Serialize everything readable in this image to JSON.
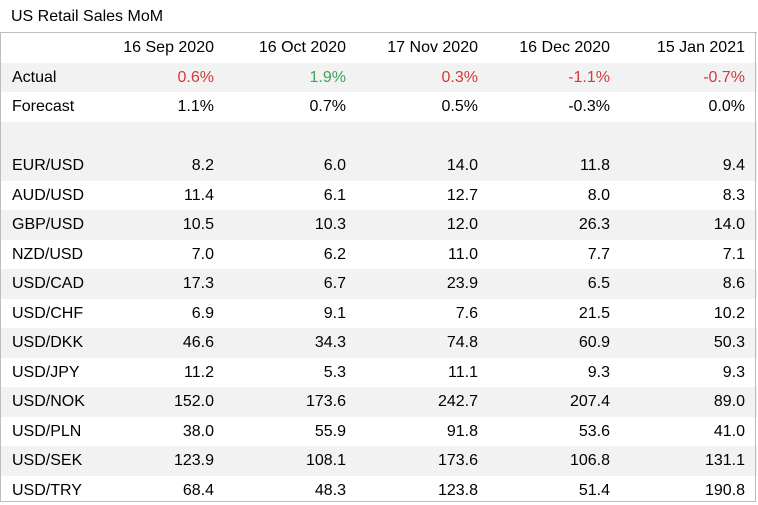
{
  "title": "US Retail Sales MoM",
  "columns": [
    "16 Sep 2020",
    "16 Oct 2020",
    "17 Nov 2020",
    "16 Dec 2020",
    "15 Jan 2021"
  ],
  "actual": {
    "label": "Actual",
    "values": [
      "0.6%",
      "1.9%",
      "0.3%",
      "-1.1%",
      "-0.7%"
    ]
  },
  "forecast": {
    "label": "Forecast",
    "values": [
      "1.1%",
      "0.7%",
      "0.5%",
      "-0.3%",
      "0.0%"
    ]
  },
  "pairs": [
    {
      "label": "EUR/USD",
      "values": [
        "8.2",
        "6.0",
        "14.0",
        "11.8",
        "9.4"
      ]
    },
    {
      "label": "AUD/USD",
      "values": [
        "11.4",
        "6.1",
        "12.7",
        "8.0",
        "8.3"
      ]
    },
    {
      "label": "GBP/USD",
      "values": [
        "10.5",
        "10.3",
        "12.0",
        "26.3",
        "14.0"
      ]
    },
    {
      "label": "NZD/USD",
      "values": [
        "7.0",
        "6.2",
        "11.0",
        "7.7",
        "7.1"
      ]
    },
    {
      "label": "USD/CAD",
      "values": [
        "17.3",
        "6.7",
        "23.9",
        "6.5",
        "8.6"
      ]
    },
    {
      "label": "USD/CHF",
      "values": [
        "6.9",
        "9.1",
        "7.6",
        "21.5",
        "10.2"
      ]
    },
    {
      "label": "USD/DKK",
      "values": [
        "46.6",
        "34.3",
        "74.8",
        "60.9",
        "50.3"
      ]
    },
    {
      "label": "USD/JPY",
      "values": [
        "11.2",
        "5.3",
        "11.1",
        "9.3",
        "9.3"
      ]
    },
    {
      "label": "USD/NOK",
      "values": [
        "152.0",
        "173.6",
        "242.7",
        "207.4",
        "89.0"
      ]
    },
    {
      "label": "USD/PLN",
      "values": [
        "38.0",
        "55.9",
        "91.8",
        "53.6",
        "41.0"
      ]
    },
    {
      "label": "USD/SEK",
      "values": [
        "123.9",
        "108.1",
        "173.6",
        "106.8",
        "131.1"
      ]
    },
    {
      "label": "USD/TRY",
      "values": [
        "68.4",
        "48.3",
        "123.8",
        "51.4",
        "190.8"
      ]
    }
  ],
  "colors": {
    "negative": "#d23a3a",
    "positive": "#3aa655",
    "band": "#f2f2f2",
    "border": "#bdbdbd"
  }
}
